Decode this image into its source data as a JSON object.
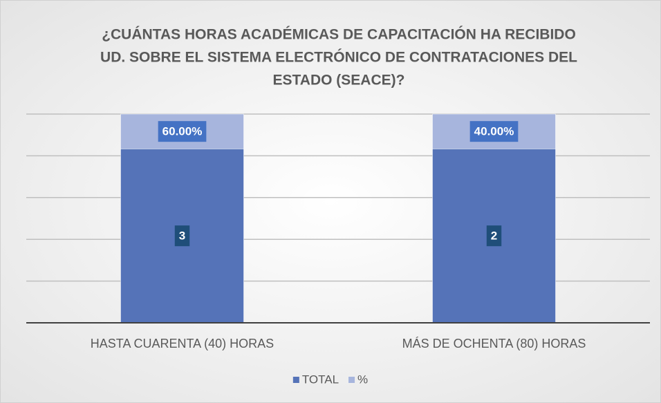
{
  "chart_data": {
    "type": "stacked100",
    "title": [
      "¿CUÁNTAS HORAS ACADÉMICAS DE CAPACITACIÓN HA RECIBIDO",
      "UD. SOBRE EL SISTEMA ELECTRÓNICO DE CONTRATACIONES DEL",
      "ESTADO (SEACE)?"
    ],
    "categories": [
      "HASTA CUARENTA (40) HORAS",
      "MÁS DE OCHENTA (80) HORAS"
    ],
    "series": [
      {
        "name": "TOTAL",
        "color": "#5573b8",
        "label_box": "#1f4e79",
        "values": [
          3,
          2
        ]
      },
      {
        "name": "%",
        "color": "#a7b5dd",
        "label_box": "#4472c4",
        "values": [
          0.6,
          0.4
        ],
        "value_labels": [
          "60.00%",
          "40.00%"
        ]
      }
    ],
    "ylim": [
      0,
      100
    ],
    "yticks": [
      0,
      20,
      40,
      60,
      80,
      100
    ],
    "grid": true
  }
}
